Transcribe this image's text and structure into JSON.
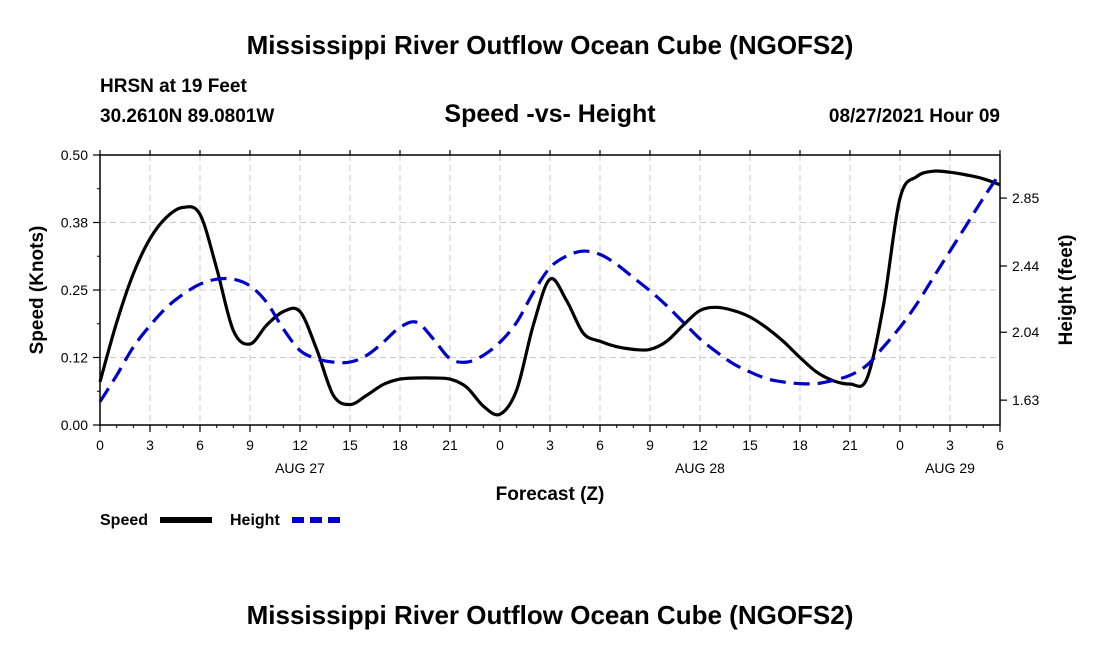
{
  "header": {
    "main_title": "Mississippi River Outflow Ocean Cube (NGOFS2)",
    "station": "HRSN at 19 Feet",
    "coords": "30.2610N  89.0801W",
    "plot_title": "Speed -vs- Height",
    "datetime": "08/27/2021 Hour 09"
  },
  "footer": {
    "title": "Mississippi River Outflow Ocean Cube (NGOFS2)"
  },
  "chart_data": {
    "type": "line",
    "title": "Speed -vs- Height",
    "xlabel": "Forecast (Z)",
    "ylabel": "Speed (Knots)",
    "y2label": "Height (feet)",
    "xlim": [
      0,
      54
    ],
    "ylim": [
      0,
      0.5
    ],
    "y2lim": [
      1.48,
      3.11
    ],
    "grid": true,
    "x_ticks": [
      0,
      3,
      6,
      9,
      12,
      15,
      18,
      21,
      24,
      27,
      30,
      33,
      36,
      39,
      42,
      45,
      48,
      51,
      54
    ],
    "x_tick_labels": [
      "0",
      "3",
      "6",
      "9",
      "12",
      "15",
      "18",
      "21",
      "0",
      "3",
      "6",
      "9",
      "12",
      "15",
      "18",
      "21",
      "0",
      "3",
      "6"
    ],
    "date_labels": [
      {
        "x": 12,
        "label": "AUG 27"
      },
      {
        "x": 36,
        "label": "AUG 28"
      },
      {
        "x": 51,
        "label": "AUG 29"
      }
    ],
    "y_ticks": [
      0.0,
      0.125,
      0.25,
      0.375,
      0.5
    ],
    "y_tick_labels": [
      "0.00",
      "0.12",
      "0.25",
      "0.38",
      "0.50"
    ],
    "y2_ticks": [
      1.63,
      2.04,
      2.44,
      2.85
    ],
    "y2_tick_labels": [
      "1.63",
      "2.04",
      "2.44",
      "2.85"
    ],
    "legend": [
      {
        "name": "Speed",
        "color": "#000000",
        "style": "solid"
      },
      {
        "name": "Height",
        "color": "#0000cc",
        "style": "dashed"
      }
    ],
    "series": [
      {
        "name": "Speed",
        "axis": "left",
        "color": "#000000",
        "x": [
          0,
          1,
          2,
          3,
          4,
          5,
          6,
          7,
          8,
          9,
          10,
          11,
          12,
          13,
          14,
          15,
          16,
          17,
          18,
          19,
          20,
          21,
          22,
          23,
          24,
          25,
          26,
          27,
          28,
          29,
          30,
          31,
          32,
          33,
          34,
          35,
          36,
          37,
          38,
          39,
          40,
          41,
          42,
          43,
          44,
          45,
          46,
          47,
          48,
          49,
          50,
          51,
          52,
          53,
          54
        ],
        "values": [
          0.08,
          0.19,
          0.28,
          0.345,
          0.385,
          0.403,
          0.39,
          0.29,
          0.175,
          0.15,
          0.185,
          0.21,
          0.21,
          0.14,
          0.055,
          0.038,
          0.055,
          0.075,
          0.085,
          0.087,
          0.087,
          0.085,
          0.07,
          0.035,
          0.02,
          0.065,
          0.185,
          0.27,
          0.23,
          0.17,
          0.155,
          0.145,
          0.14,
          0.14,
          0.155,
          0.185,
          0.212,
          0.218,
          0.212,
          0.2,
          0.18,
          0.155,
          0.125,
          0.098,
          0.082,
          0.076,
          0.085,
          0.22,
          0.42,
          0.46,
          0.47,
          0.468,
          0.463,
          0.456,
          0.445
        ]
      },
      {
        "name": "Height",
        "axis": "right",
        "color": "#0000cc",
        "x": [
          0,
          1,
          2,
          3,
          4,
          5,
          6,
          7,
          8,
          9,
          10,
          11,
          12,
          13,
          14,
          15,
          16,
          17,
          18,
          19,
          20,
          21,
          22,
          23,
          24,
          25,
          26,
          27,
          28,
          29,
          30,
          31,
          32,
          33,
          34,
          35,
          36,
          37,
          38,
          39,
          40,
          41,
          42,
          43,
          44,
          45,
          46,
          47,
          48,
          49,
          50,
          51,
          52,
          53,
          54
        ],
        "values": [
          1.62,
          1.78,
          1.95,
          2.08,
          2.19,
          2.27,
          2.33,
          2.36,
          2.36,
          2.32,
          2.22,
          2.06,
          1.93,
          1.88,
          1.86,
          1.86,
          1.9,
          1.98,
          2.07,
          2.1,
          2.0,
          1.88,
          1.86,
          1.9,
          1.98,
          2.1,
          2.28,
          2.43,
          2.5,
          2.53,
          2.51,
          2.45,
          2.37,
          2.29,
          2.2,
          2.1,
          2.0,
          1.92,
          1.85,
          1.8,
          1.76,
          1.74,
          1.73,
          1.73,
          1.75,
          1.78,
          1.84,
          1.95,
          2.07,
          2.21,
          2.37,
          2.53,
          2.69,
          2.85,
          3.0
        ]
      }
    ]
  }
}
